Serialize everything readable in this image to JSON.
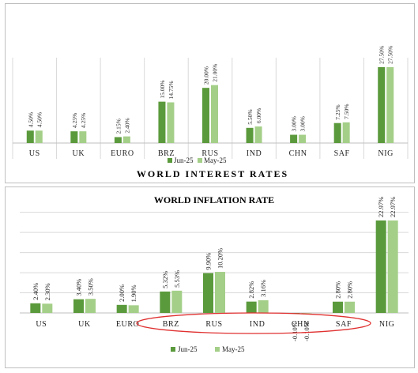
{
  "colors": {
    "jun": "#5b9a3c",
    "may": "#a4cf88",
    "highlight": "#e03030",
    "grid": "#d9d9d9",
    "axis": "#bfbfbf"
  },
  "chart_data": [
    {
      "type": "bar",
      "title": "WORLD INTEREST RATES",
      "categories": [
        "US",
        "UK",
        "EURO",
        "BRZ",
        "RUS",
        "IND",
        "CHN",
        "SAF",
        "NIG"
      ],
      "series": [
        {
          "name": "Jun-25",
          "values": [
            4.5,
            4.25,
            2.15,
            15.0,
            20.0,
            5.5,
            3.0,
            7.25,
            27.5
          ],
          "labels": [
            "4.50%",
            "4.25%",
            "2.15%",
            "15.00%",
            "20.00%",
            "5.50%",
            "3.00%",
            "7.25%",
            "27.50%"
          ]
        },
        {
          "name": "May-25",
          "values": [
            4.5,
            4.25,
            2.4,
            14.75,
            21.0,
            6.0,
            3.0,
            7.5,
            27.5
          ],
          "labels": [
            "4.50%",
            "4.25%",
            "2.40%",
            "14.75%",
            "21.00%",
            "6.00%",
            "3.00%",
            "7.50%",
            "27.50%"
          ]
        }
      ],
      "legend": "top-center",
      "grid": false
    },
    {
      "type": "bar",
      "title": "WORLD INFLATION RATE",
      "categories": [
        "US",
        "UK",
        "EURO",
        "BRZ",
        "RUS",
        "IND",
        "CHN",
        "SAF",
        "NIG"
      ],
      "series": [
        {
          "name": "Jun-25",
          "values": [
            2.4,
            3.4,
            2.0,
            5.32,
            9.9,
            2.82,
            -0.1,
            2.8,
            22.97
          ],
          "labels": [
            "2.40%",
            "3.40%",
            "2.00%",
            "5.32%",
            "9.90%",
            "2.82%",
            "-0.10%",
            "2.80%",
            "22.97%"
          ]
        },
        {
          "name": "May-25",
          "values": [
            2.3,
            3.5,
            1.9,
            5.53,
            10.2,
            3.16,
            -0.1,
            2.8,
            22.97
          ],
          "labels": [
            "2.30%",
            "3.50%",
            "1.90%",
            "5.53%",
            "10.20%",
            "3.16%",
            "-0.10%",
            "2.80%",
            "22.97%"
          ]
        }
      ],
      "legend": "bottom-center",
      "grid": true
    }
  ]
}
